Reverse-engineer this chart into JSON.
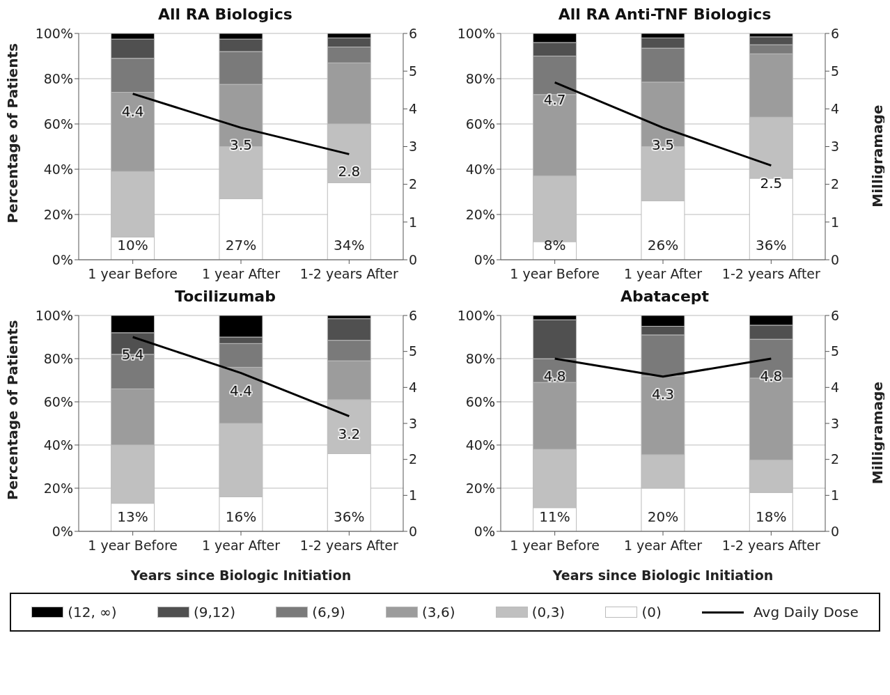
{
  "chart_data": [
    {
      "type": "bar",
      "title": "All RA Biologics",
      "ylabel": "Percentage of Patients",
      "categories": [
        "1 year Before",
        "1 year After",
        "1-2 years After"
      ],
      "stacked": true,
      "grid": "y",
      "legend": "bottom",
      "ylim": [
        0,
        100
      ],
      "yticks": [
        {
          "value": 0,
          "label": "0%"
        },
        {
          "value": 20,
          "label": "20%"
        },
        {
          "value": 40,
          "label": "40%"
        },
        {
          "value": 60,
          "label": "60%"
        },
        {
          "value": 80,
          "label": "80%"
        },
        {
          "value": 100,
          "label": "100%"
        }
      ],
      "y2lim": [
        0,
        6
      ],
      "y2ticks": [
        0,
        1,
        2,
        3,
        4,
        5,
        6
      ],
      "series": [
        {
          "name": "(0)",
          "color": "#ffffff",
          "values": [
            10,
            27,
            34
          ],
          "value_labels": [
            "10%",
            "27%",
            "34%"
          ]
        },
        {
          "name": "(0,3)",
          "color": "#c0c0c0",
          "values": [
            29,
            23,
            26
          ]
        },
        {
          "name": "(3,6)",
          "color": "#9c9c9c",
          "values": [
            35,
            27.5,
            27
          ]
        },
        {
          "name": "(6,9)",
          "color": "#7a7a7a",
          "values": [
            15,
            14.5,
            7
          ]
        },
        {
          "name": "(9,12)",
          "color": "#505050",
          "values": [
            8.5,
            5.5,
            4
          ]
        },
        {
          "name": "(12, ∞)",
          "color": "#000000",
          "values": [
            2.5,
            2.5,
            2
          ]
        },
        {
          "name": "Avg Daily Dose",
          "type": "line",
          "axis": "y2",
          "color": "#000000",
          "values": [
            4.4,
            3.5,
            2.8
          ],
          "value_labels": [
            "4.4",
            "3.5",
            "2.8"
          ]
        }
      ]
    },
    {
      "type": "bar",
      "title": "All RA Anti-TNF Biologics",
      "y2label": "Milligramage",
      "categories": [
        "1 year Before",
        "1 year After",
        "1-2 years After"
      ],
      "stacked": true,
      "grid": "y",
      "legend": "bottom",
      "ylim": [
        0,
        100
      ],
      "yticks": [
        {
          "value": 0,
          "label": "0%"
        },
        {
          "value": 20,
          "label": "20%"
        },
        {
          "value": 40,
          "label": "40%"
        },
        {
          "value": 60,
          "label": "60%"
        },
        {
          "value": 80,
          "label": "80%"
        },
        {
          "value": 100,
          "label": "100%"
        }
      ],
      "y2lim": [
        0,
        6
      ],
      "y2ticks": [
        0,
        1,
        2,
        3,
        4,
        5,
        6
      ],
      "series": [
        {
          "name": "(0)",
          "color": "#ffffff",
          "values": [
            8,
            26,
            36
          ],
          "value_labels": [
            "8%",
            "26%",
            "36%"
          ]
        },
        {
          "name": "(0,3)",
          "color": "#c0c0c0",
          "values": [
            29,
            24,
            27
          ]
        },
        {
          "name": "(3,6)",
          "color": "#9c9c9c",
          "values": [
            36,
            28.5,
            28
          ]
        },
        {
          "name": "(6,9)",
          "color": "#7a7a7a",
          "values": [
            17,
            15,
            4
          ]
        },
        {
          "name": "(9,12)",
          "color": "#505050",
          "values": [
            6,
            4.5,
            3.5
          ]
        },
        {
          "name": "(12, ∞)",
          "color": "#000000",
          "values": [
            4,
            2,
            1.5
          ]
        },
        {
          "name": "Avg Daily Dose",
          "type": "line",
          "axis": "y2",
          "color": "#000000",
          "values": [
            4.7,
            3.5,
            2.5
          ],
          "value_labels": [
            "4.7",
            "3.5",
            "2.5"
          ]
        }
      ]
    },
    {
      "type": "bar",
      "title": "Tocilizumab",
      "ylabel": "Percentage of Patients",
      "xlabel": "Years since Biologic Initiation",
      "categories": [
        "1 year Before",
        "1 year After",
        "1-2 years After"
      ],
      "stacked": true,
      "grid": "y",
      "legend": "bottom",
      "ylim": [
        0,
        100
      ],
      "yticks": [
        {
          "value": 0,
          "label": "0%"
        },
        {
          "value": 20,
          "label": "20%"
        },
        {
          "value": 40,
          "label": "40%"
        },
        {
          "value": 60,
          "label": "60%"
        },
        {
          "value": 80,
          "label": "80%"
        },
        {
          "value": 100,
          "label": "100%"
        }
      ],
      "y2lim": [
        0,
        6
      ],
      "y2ticks": [
        0,
        1,
        2,
        3,
        4,
        5,
        6
      ],
      "series": [
        {
          "name": "(0)",
          "color": "#ffffff",
          "values": [
            13,
            16,
            36
          ],
          "value_labels": [
            "13%",
            "16%",
            "36%"
          ]
        },
        {
          "name": "(0,3)",
          "color": "#c0c0c0",
          "values": [
            27,
            34,
            25
          ]
        },
        {
          "name": "(3,6)",
          "color": "#9c9c9c",
          "values": [
            26,
            26,
            18
          ]
        },
        {
          "name": "(6,9)",
          "color": "#7a7a7a",
          "values": [
            16,
            11,
            9.5
          ]
        },
        {
          "name": "(9,12)",
          "color": "#505050",
          "values": [
            10,
            3,
            10
          ]
        },
        {
          "name": "(12, ∞)",
          "color": "#000000",
          "values": [
            8,
            10,
            1.5
          ]
        },
        {
          "name": "Avg Daily Dose",
          "type": "line",
          "axis": "y2",
          "color": "#000000",
          "values": [
            5.4,
            4.4,
            3.2
          ],
          "value_labels": [
            "5.4",
            "4.4",
            "3.2"
          ]
        }
      ]
    },
    {
      "type": "bar",
      "title": "Abatacept",
      "y2label": "Milligramage",
      "xlabel": "Years since Biologic Initiation",
      "categories": [
        "1 year Before",
        "1 year After",
        "1-2 years After"
      ],
      "stacked": true,
      "grid": "y",
      "legend": "bottom",
      "ylim": [
        0,
        100
      ],
      "yticks": [
        {
          "value": 0,
          "label": "0%"
        },
        {
          "value": 20,
          "label": "20%"
        },
        {
          "value": 40,
          "label": "40%"
        },
        {
          "value": 60,
          "label": "60%"
        },
        {
          "value": 80,
          "label": "80%"
        },
        {
          "value": 100,
          "label": "100%"
        }
      ],
      "y2lim": [
        0,
        6
      ],
      "y2ticks": [
        0,
        1,
        2,
        3,
        4,
        5,
        6
      ],
      "series": [
        {
          "name": "(0)",
          "color": "#ffffff",
          "values": [
            11,
            20,
            18
          ],
          "value_labels": [
            "11%",
            "20%",
            "18%"
          ]
        },
        {
          "name": "(0,3)",
          "color": "#c0c0c0",
          "values": [
            27,
            15.5,
            15
          ]
        },
        {
          "name": "(3,6)",
          "color": "#9c9c9c",
          "values": [
            31,
            36.5,
            38
          ]
        },
        {
          "name": "(6,9)",
          "color": "#7a7a7a",
          "values": [
            11,
            19,
            18
          ]
        },
        {
          "name": "(9,12)",
          "color": "#505050",
          "values": [
            18,
            4,
            6.5
          ]
        },
        {
          "name": "(12, ∞)",
          "color": "#000000",
          "values": [
            2,
            5,
            4.5
          ]
        },
        {
          "name": "Avg Daily Dose",
          "type": "line",
          "axis": "y2",
          "color": "#000000",
          "values": [
            4.8,
            4.3,
            4.8
          ],
          "value_labels": [
            "4.8",
            "4.3",
            "4.8"
          ]
        }
      ]
    }
  ]
}
